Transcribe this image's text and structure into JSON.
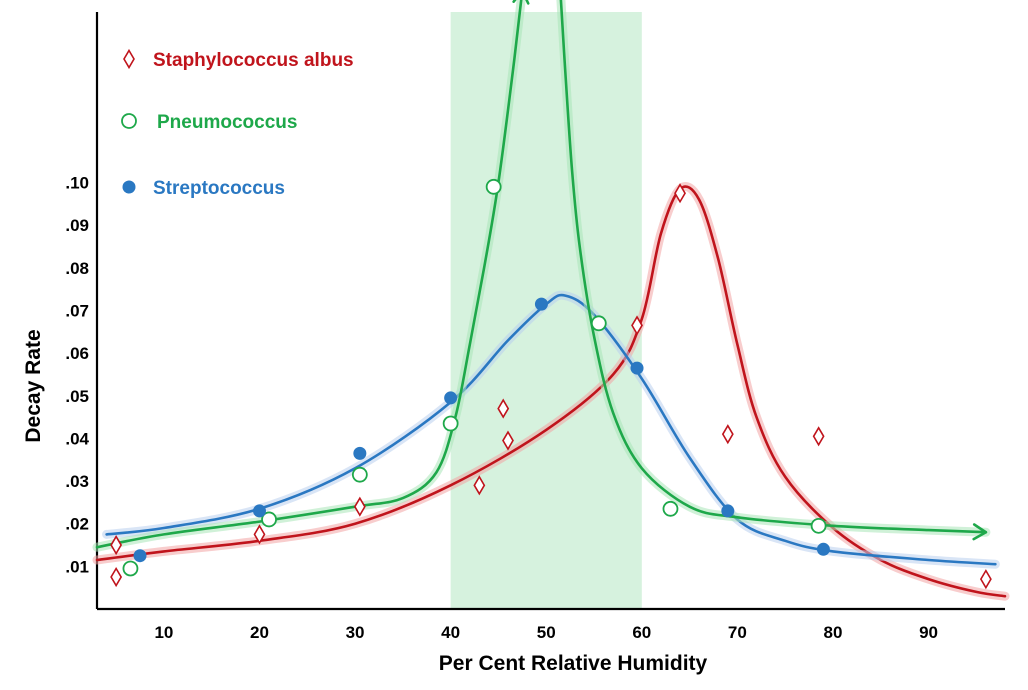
{
  "chart_data": {
    "type": "scatter",
    "title": "",
    "xlabel": "Per Cent Relative Humidity",
    "ylabel": "Decay Rate",
    "xlim": [
      3,
      98
    ],
    "ylim": [
      0.0,
      0.14
    ],
    "x_ticks": [
      10,
      20,
      30,
      40,
      50,
      60,
      70,
      80,
      90
    ],
    "x_tick_labels": [
      "10",
      "20",
      "30",
      "40",
      "50",
      "60",
      "70",
      "80",
      "90"
    ],
    "y_ticks": [
      0.01,
      0.02,
      0.03,
      0.04,
      0.05,
      0.06,
      0.07,
      0.08,
      0.09,
      0.1
    ],
    "y_tick_labels": [
      ".01",
      ".02",
      ".03",
      ".04",
      ".05",
      ".06",
      ".07",
      ".08",
      ".09",
      ".10"
    ],
    "grid": false,
    "legend_position": "top-left",
    "highlight_band": {
      "x_from": 40,
      "x_to": 60,
      "color": "#d6f2de"
    },
    "series": [
      {
        "name": "Staphylococcus albus",
        "marker": "diamond-open",
        "color": "#c0141c",
        "points": [
          [
            5,
            0.0075
          ],
          [
            5,
            0.015
          ],
          [
            20,
            0.0175
          ],
          [
            30.5,
            0.024
          ],
          [
            43,
            0.029
          ],
          [
            45.5,
            0.047
          ],
          [
            46,
            0.0395
          ],
          [
            59.5,
            0.0665
          ],
          [
            64,
            0.0975
          ],
          [
            69,
            0.041
          ],
          [
            78.5,
            0.0405
          ],
          [
            96,
            0.007
          ]
        ],
        "curve": [
          [
            3,
            0.0115
          ],
          [
            10,
            0.0135
          ],
          [
            20,
            0.016
          ],
          [
            30,
            0.02
          ],
          [
            40,
            0.029
          ],
          [
            50,
            0.042
          ],
          [
            57,
            0.055
          ],
          [
            60,
            0.068
          ],
          [
            62,
            0.088
          ],
          [
            64,
            0.0985
          ],
          [
            66,
            0.096
          ],
          [
            68,
            0.082
          ],
          [
            70,
            0.062
          ],
          [
            72,
            0.045
          ],
          [
            75,
            0.031
          ],
          [
            80,
            0.019
          ],
          [
            85,
            0.0115
          ],
          [
            90,
            0.007
          ],
          [
            95,
            0.004
          ],
          [
            98,
            0.003
          ]
        ]
      },
      {
        "name": "Pneumococcus",
        "marker": "circle-open",
        "color": "#1ea84a",
        "points": [
          [
            6.5,
            0.0095
          ],
          [
            21,
            0.021
          ],
          [
            30.5,
            0.0315
          ],
          [
            40,
            0.0435
          ],
          [
            44.5,
            0.099
          ],
          [
            55.5,
            0.067
          ],
          [
            63,
            0.0235
          ],
          [
            78.5,
            0.0195
          ]
        ],
        "curve_rising": [
          [
            3,
            0.0145
          ],
          [
            10,
            0.0175
          ],
          [
            20,
            0.0205
          ],
          [
            30,
            0.024
          ],
          [
            35,
            0.026
          ],
          [
            38.5,
            0.032
          ],
          [
            40.5,
            0.045
          ],
          [
            42,
            0.062
          ],
          [
            43.5,
            0.08
          ],
          [
            45,
            0.1
          ],
          [
            46.5,
            0.126
          ],
          [
            47.5,
            0.145
          ]
        ],
        "curve_falling": [
          [
            51.5,
            0.144
          ],
          [
            52,
            0.126
          ],
          [
            52.7,
            0.103
          ],
          [
            53.5,
            0.085
          ],
          [
            55,
            0.064
          ],
          [
            57,
            0.046
          ],
          [
            60,
            0.033
          ],
          [
            65,
            0.024
          ],
          [
            70,
            0.0215
          ],
          [
            80,
            0.0195
          ],
          [
            90,
            0.0185
          ],
          [
            96,
            0.018
          ]
        ]
      },
      {
        "name": "Streptococcus",
        "marker": "circle-filled",
        "color": "#2a78c2",
        "points": [
          [
            7.5,
            0.0125
          ],
          [
            20,
            0.023
          ],
          [
            30.5,
            0.0365
          ],
          [
            40,
            0.0495
          ],
          [
            49.5,
            0.0715
          ],
          [
            59.5,
            0.0565
          ],
          [
            69,
            0.023
          ],
          [
            79,
            0.014
          ]
        ],
        "curve": [
          [
            4,
            0.0175
          ],
          [
            10,
            0.019
          ],
          [
            20,
            0.0235
          ],
          [
            30,
            0.033
          ],
          [
            40,
            0.0485
          ],
          [
            46,
            0.063
          ],
          [
            50,
            0.0715
          ],
          [
            52,
            0.0735
          ],
          [
            55,
            0.069
          ],
          [
            60,
            0.054
          ],
          [
            65,
            0.0355
          ],
          [
            70,
            0.021
          ],
          [
            75,
            0.016
          ],
          [
            80,
            0.0135
          ],
          [
            90,
            0.0115
          ],
          [
            97,
            0.0105
          ]
        ]
      }
    ]
  }
}
